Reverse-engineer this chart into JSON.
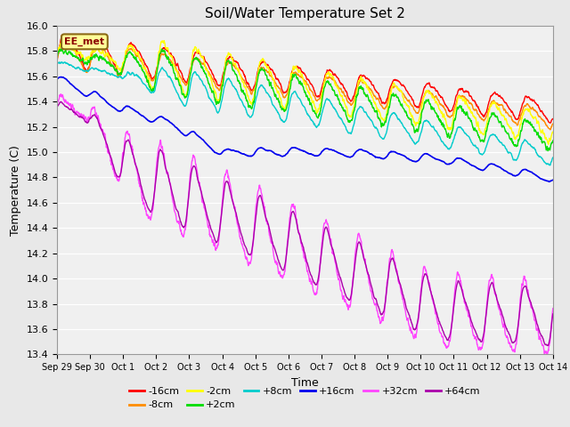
{
  "title": "Soil/Water Temperature Set 2",
  "xlabel": "Time",
  "ylabel": "Temperature (C)",
  "ylim": [
    13.4,
    16.0
  ],
  "annotation_text": "EE_met",
  "annotation_color": "#8B0000",
  "annotation_bg": "#FFFF99",
  "background_color": "#E8E8E8",
  "plot_bg": "#F0F0F0",
  "series_order": [
    "-16cm",
    "-8cm",
    "-2cm",
    "+2cm",
    "+8cm",
    "+16cm",
    "+32cm",
    "+64cm"
  ],
  "series": {
    "-16cm": {
      "color": "#FF0000",
      "lw": 1.0
    },
    "-8cm": {
      "color": "#FF8C00",
      "lw": 1.0
    },
    "-2cm": {
      "color": "#FFFF00",
      "lw": 1.0
    },
    "+2cm": {
      "color": "#00DD00",
      "lw": 1.0
    },
    "+8cm": {
      "color": "#00CCCC",
      "lw": 1.0
    },
    "+16cm": {
      "color": "#0000EE",
      "lw": 1.2
    },
    "+32cm": {
      "color": "#FF44FF",
      "lw": 1.0
    },
    "+64cm": {
      "color": "#AA00AA",
      "lw": 1.0
    }
  },
  "xtick_labels": [
    "Sep 29",
    "Sep 30",
    "Oct 1",
    "Oct 2",
    "Oct 3",
    "Oct 4",
    "Oct 5",
    "Oct 6",
    "Oct 7",
    "Oct 8",
    "Oct 9",
    "Oct 10",
    "Oct 11",
    "Oct 12",
    "Oct 13",
    "Oct 14"
  ],
  "ytick_vals": [
    13.4,
    13.6,
    13.8,
    14.0,
    14.2,
    14.4,
    14.6,
    14.8,
    15.0,
    15.2,
    15.4,
    15.6,
    15.8,
    16.0
  ]
}
